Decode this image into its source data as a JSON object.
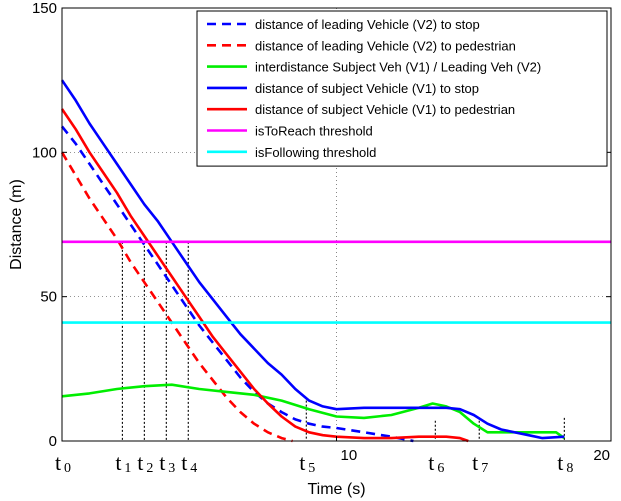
{
  "chart_data": {
    "type": "line",
    "title": "",
    "xlabel": "Time (s)",
    "ylabel": "Distance (m)",
    "xlim": [
      0,
      20
    ],
    "ylim": [
      0,
      150
    ],
    "x_tick_labels": [
      "10",
      "20"
    ],
    "y_tick_labels": [
      "0",
      "50",
      "100",
      "150"
    ],
    "grid": true,
    "legend_position": "top-right",
    "series": [
      {
        "name": "distance of leading Vehicle (V2) to stop",
        "color": "#0000ff",
        "dash": "dashed",
        "points": [
          [
            0,
            109
          ],
          [
            0.5,
            103
          ],
          [
            1,
            96
          ],
          [
            1.5,
            89
          ],
          [
            2,
            82
          ],
          [
            2.5,
            75
          ],
          [
            3,
            68
          ],
          [
            3.5,
            61
          ],
          [
            4,
            54
          ],
          [
            4.5,
            47
          ],
          [
            5,
            40
          ],
          [
            5.5,
            34
          ],
          [
            6,
            28
          ],
          [
            6.5,
            22
          ],
          [
            7,
            17
          ],
          [
            7.5,
            13
          ],
          [
            8,
            10
          ],
          [
            8.5,
            7.5
          ],
          [
            9,
            6
          ],
          [
            9.5,
            5
          ],
          [
            10,
            4.5
          ],
          [
            11,
            3
          ],
          [
            12,
            1.5
          ],
          [
            12.8,
            0
          ]
        ]
      },
      {
        "name": "distance of leading Vehicle (V2) to pedestrian",
        "color": "#ff0000",
        "dash": "dashed",
        "points": [
          [
            0,
            100
          ],
          [
            0.5,
            92
          ],
          [
            1,
            84
          ],
          [
            1.5,
            77
          ],
          [
            2,
            70
          ],
          [
            2.5,
            62
          ],
          [
            3,
            55
          ],
          [
            3.5,
            48
          ],
          [
            4,
            41
          ],
          [
            4.5,
            34
          ],
          [
            5,
            27
          ],
          [
            5.5,
            21
          ],
          [
            6,
            15
          ],
          [
            6.5,
            10
          ],
          [
            7,
            6
          ],
          [
            7.5,
            3
          ],
          [
            8,
            1
          ],
          [
            8.4,
            0
          ]
        ]
      },
      {
        "name": "interdistance Subject Veh (V1) / Leading Veh (V2)",
        "color": "#00ee00",
        "dash": "solid",
        "points": [
          [
            0,
            15.5
          ],
          [
            1,
            16.5
          ],
          [
            2,
            18
          ],
          [
            3,
            19
          ],
          [
            4,
            19.5
          ],
          [
            5,
            18
          ],
          [
            6,
            17
          ],
          [
            7,
            16
          ],
          [
            8,
            14
          ],
          [
            9,
            11
          ],
          [
            10,
            8.5
          ],
          [
            11,
            8
          ],
          [
            12,
            9
          ],
          [
            13,
            11.5
          ],
          [
            13.5,
            13
          ],
          [
            14,
            12
          ],
          [
            14.5,
            10
          ],
          [
            15,
            6
          ],
          [
            15.5,
            3
          ],
          [
            16,
            3
          ],
          [
            17,
            3
          ],
          [
            18,
            3
          ],
          [
            18.3,
            1
          ]
        ]
      },
      {
        "name": "distance of subject Vehicle (V1) to stop",
        "color": "#0000ff",
        "dash": "solid",
        "points": [
          [
            0,
            125
          ],
          [
            0.5,
            118
          ],
          [
            1,
            110
          ],
          [
            1.5,
            103
          ],
          [
            2,
            96
          ],
          [
            2.5,
            89
          ],
          [
            3,
            82
          ],
          [
            3.5,
            76
          ],
          [
            4,
            69
          ],
          [
            4.5,
            62
          ],
          [
            5,
            55
          ],
          [
            5.5,
            49
          ],
          [
            6,
            43
          ],
          [
            6.5,
            37
          ],
          [
            7,
            32
          ],
          [
            7.5,
            27
          ],
          [
            8,
            23
          ],
          [
            8.5,
            18
          ],
          [
            9,
            14
          ],
          [
            9.5,
            12
          ],
          [
            10,
            11
          ],
          [
            11,
            11.5
          ],
          [
            12,
            11.5
          ],
          [
            13,
            11.5
          ],
          [
            14,
            11.5
          ],
          [
            14.5,
            11
          ],
          [
            15,
            9
          ],
          [
            15.5,
            6
          ],
          [
            16,
            4
          ],
          [
            17,
            2
          ],
          [
            17.5,
            1
          ],
          [
            18.3,
            1.5
          ]
        ]
      },
      {
        "name": "distance of subject Vehicle (V1) to pedestrian",
        "color": "#ff0000",
        "dash": "solid",
        "points": [
          [
            0,
            115
          ],
          [
            0.5,
            108
          ],
          [
            1,
            100
          ],
          [
            1.5,
            93
          ],
          [
            2,
            86
          ],
          [
            2.5,
            78
          ],
          [
            3,
            71
          ],
          [
            3.5,
            64
          ],
          [
            4,
            57
          ],
          [
            4.5,
            50
          ],
          [
            5,
            43
          ],
          [
            5.5,
            36
          ],
          [
            6,
            30
          ],
          [
            6.5,
            24
          ],
          [
            7,
            18
          ],
          [
            7.5,
            13
          ],
          [
            8,
            8.5
          ],
          [
            8.5,
            5
          ],
          [
            9,
            3
          ],
          [
            9.5,
            2
          ],
          [
            10,
            1.5
          ],
          [
            11,
            1
          ],
          [
            12,
            1
          ],
          [
            13,
            1.5
          ],
          [
            14,
            1.5
          ],
          [
            14.5,
            1
          ],
          [
            14.8,
            0
          ]
        ]
      },
      {
        "name": "isToReach threshold",
        "color": "#ff00ff",
        "dash": "solid",
        "points": [
          [
            0,
            69
          ],
          [
            20,
            69
          ]
        ]
      },
      {
        "name": "isFollowing threshold",
        "color": "#00ffff",
        "dash": "solid",
        "points": [
          [
            0,
            41
          ],
          [
            20,
            41
          ]
        ]
      }
    ],
    "annotations": [
      {
        "label": "t",
        "sub": "0",
        "x": 0,
        "y_top": null
      },
      {
        "label": "t",
        "sub": "1",
        "x": 2.2,
        "y_top": 69
      },
      {
        "label": "t",
        "sub": "2",
        "x": 3.0,
        "y_top": 69
      },
      {
        "label": "t",
        "sub": "3",
        "x": 3.8,
        "y_top": 69
      },
      {
        "label": "t",
        "sub": "4",
        "x": 4.6,
        "y_top": 69
      },
      {
        "label": "t",
        "sub": "5",
        "x": 8.9,
        "y_top": 14
      },
      {
        "label": "t",
        "sub": "6",
        "x": 13.6,
        "y_top": 7
      },
      {
        "label": "t",
        "sub": "7",
        "x": 15.2,
        "y_top": 7
      },
      {
        "label": "t",
        "sub": "8",
        "x": 18.3,
        "y_top": 8
      }
    ]
  }
}
